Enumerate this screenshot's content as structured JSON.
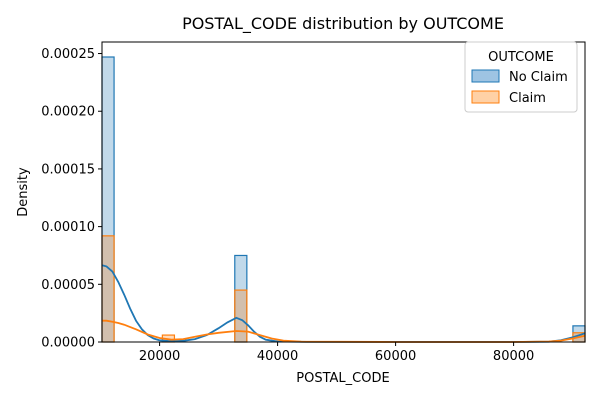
{
  "chart_data": {
    "type": "histogram",
    "title": "POSTAL_CODE distribution by OUTCOME",
    "xlabel": "POSTAL_CODE",
    "ylabel": "Density",
    "xlim": [
      10238,
      92101
    ],
    "ylim": [
      0,
      0.00026
    ],
    "x_ticks": [
      20000,
      40000,
      60000,
      80000
    ],
    "x_tick_labels": [
      "20000",
      "40000",
      "60000",
      "80000"
    ],
    "y_ticks": [
      0,
      5e-05,
      0.0001,
      0.00015,
      0.0002,
      0.00025
    ],
    "y_tick_labels": [
      "0.00000",
      "0.00005",
      "0.00010",
      "0.00015",
      "0.00020",
      "0.00025"
    ],
    "legend": {
      "title": "OUTCOME",
      "placement": "upper right",
      "entries": [
        "No Claim",
        "Claim"
      ]
    },
    "bin_width": 2046,
    "series": [
      {
        "name": "No Claim",
        "color": "#1f77b4",
        "fill": "#9ec4e3",
        "bins": [
          {
            "x0": 10238,
            "x1": 12284,
            "density": 0.000247
          },
          {
            "x0": 32743,
            "x1": 34789,
            "density": 7.5e-05
          },
          {
            "x0": 90055,
            "x1": 92101,
            "density": 1.4e-05
          }
        ],
        "kde": [
          [
            10238,
            6.65e-05
          ],
          [
            11000,
            6.55e-05
          ],
          [
            12000,
            6.1e-05
          ],
          [
            13000,
            5.2e-05
          ],
          [
            14000,
            4.1e-05
          ],
          [
            15000,
            2.9e-05
          ],
          [
            16000,
            1.85e-05
          ],
          [
            17000,
            1.1e-05
          ],
          [
            18000,
            6e-06
          ],
          [
            19000,
            3e-06
          ],
          [
            20000,
            1.5e-06
          ],
          [
            22000,
            6e-07
          ],
          [
            24000,
            1e-06
          ],
          [
            26000,
            2.5e-06
          ],
          [
            28000,
            6e-06
          ],
          [
            30000,
            1.2e-05
          ],
          [
            31500,
            1.7e-05
          ],
          [
            33000,
            2.1e-05
          ],
          [
            34000,
            1.9e-05
          ],
          [
            35000,
            1.45e-05
          ],
          [
            36000,
            9e-06
          ],
          [
            37000,
            4.5e-06
          ],
          [
            38000,
            2e-06
          ],
          [
            40000,
            4e-07
          ],
          [
            45000,
            1e-07
          ],
          [
            60000,
            0.0
          ],
          [
            80000,
            0.0
          ],
          [
            86000,
            3e-07
          ],
          [
            88000,
            1.5e-06
          ],
          [
            90000,
            4e-06
          ],
          [
            92101,
            7.5e-06
          ]
        ]
      },
      {
        "name": "Claim",
        "color": "#ff7f0e",
        "fill": "#ffd1a6",
        "bins": [
          {
            "x0": 10238,
            "x1": 12284,
            "density": 9.2e-05
          },
          {
            "x0": 20469,
            "x1": 22515,
            "density": 6e-06
          },
          {
            "x0": 32743,
            "x1": 34789,
            "density": 4.5e-05
          },
          {
            "x0": 90055,
            "x1": 92101,
            "density": 8e-06
          }
        ],
        "kde": [
          [
            10238,
            1.85e-05
          ],
          [
            11000,
            1.85e-05
          ],
          [
            12000,
            1.75e-05
          ],
          [
            13000,
            1.65e-05
          ],
          [
            14000,
            1.5e-05
          ],
          [
            16000,
            1.1e-05
          ],
          [
            18000,
            6.5e-06
          ],
          [
            20000,
            3.5e-06
          ],
          [
            22000,
            2e-06
          ],
          [
            24000,
            2.5e-06
          ],
          [
            26000,
            4.5e-06
          ],
          [
            28000,
            6.5e-06
          ],
          [
            30000,
            8e-06
          ],
          [
            33000,
            9.5e-06
          ],
          [
            35000,
            9e-06
          ],
          [
            37000,
            6e-06
          ],
          [
            39000,
            3e-06
          ],
          [
            41000,
            1.2e-06
          ],
          [
            44000,
            3e-07
          ],
          [
            60000,
            0.0
          ],
          [
            80000,
            0.0
          ],
          [
            86000,
            4e-07
          ],
          [
            88000,
            1.2e-06
          ],
          [
            90000,
            3e-06
          ],
          [
            92101,
            5.5e-06
          ]
        ]
      }
    ]
  }
}
